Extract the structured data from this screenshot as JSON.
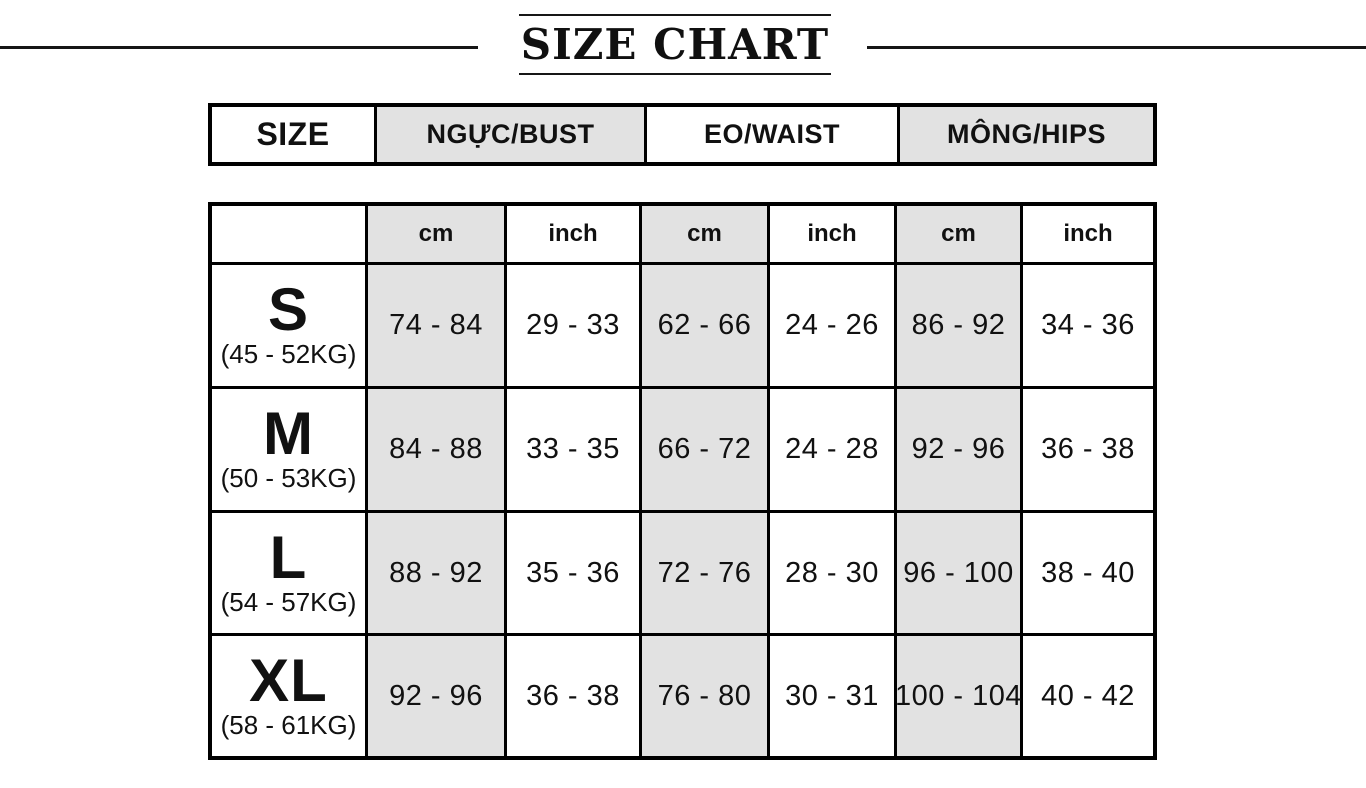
{
  "title": "SIZE CHART",
  "header": {
    "size": "SIZE",
    "bust": "NGỰC/BUST",
    "waist": "EO/WAIST",
    "hips": "MÔNG/HIPS"
  },
  "units": [
    "cm",
    "inch",
    "cm",
    "inch",
    "cm",
    "inch"
  ],
  "rows": [
    {
      "size": "S",
      "weight": "(45 - 52KG)",
      "values": [
        "74 - 84",
        "29 - 33",
        "62 - 66",
        "24 - 26",
        "86 - 92",
        "34 - 36"
      ]
    },
    {
      "size": "M",
      "weight": "(50 - 53KG)",
      "values": [
        "84 - 88",
        "33 - 35",
        "66 - 72",
        "24 - 28",
        "92 - 96",
        "36 - 38"
      ]
    },
    {
      "size": "L",
      "weight": "(54 - 57KG)",
      "values": [
        "88 - 92",
        "35 - 36",
        "72 - 76",
        "28 - 30",
        "96 - 100",
        "38 - 40"
      ]
    },
    {
      "size": "XL",
      "weight": "(58 - 61KG)",
      "values": [
        "92 - 96",
        "36 - 38",
        "76 - 80",
        "30 - 31",
        "100 - 104",
        "40 - 42"
      ]
    }
  ],
  "colors": {
    "cell_gray": "#e2e2e2",
    "border": "#000000",
    "text": "#111111"
  },
  "chart_data": {
    "type": "table",
    "title": "SIZE CHART",
    "columns": [
      "SIZE",
      "NGỰC/BUST cm",
      "NGỰC/BUST inch",
      "EO/WAIST cm",
      "EO/WAIST inch",
      "MÔNG/HIPS cm",
      "MÔNG/HIPS inch"
    ],
    "rows": [
      [
        "S (45 - 52KG)",
        "74 - 84",
        "29 - 33",
        "62 - 66",
        "24 - 26",
        "86 - 92",
        "34 - 36"
      ],
      [
        "M (50 - 53KG)",
        "84 - 88",
        "33 - 35",
        "66 - 72",
        "24 - 28",
        "92 - 96",
        "36 - 38"
      ],
      [
        "L (54 - 57KG)",
        "88 - 92",
        "35 - 36",
        "72 - 76",
        "28 - 30",
        "96 - 100",
        "38 - 40"
      ],
      [
        "XL (58 - 61KG)",
        "92 - 96",
        "36 - 38",
        "76 - 80",
        "30 - 31",
        "100 - 104",
        "40 - 42"
      ]
    ]
  }
}
